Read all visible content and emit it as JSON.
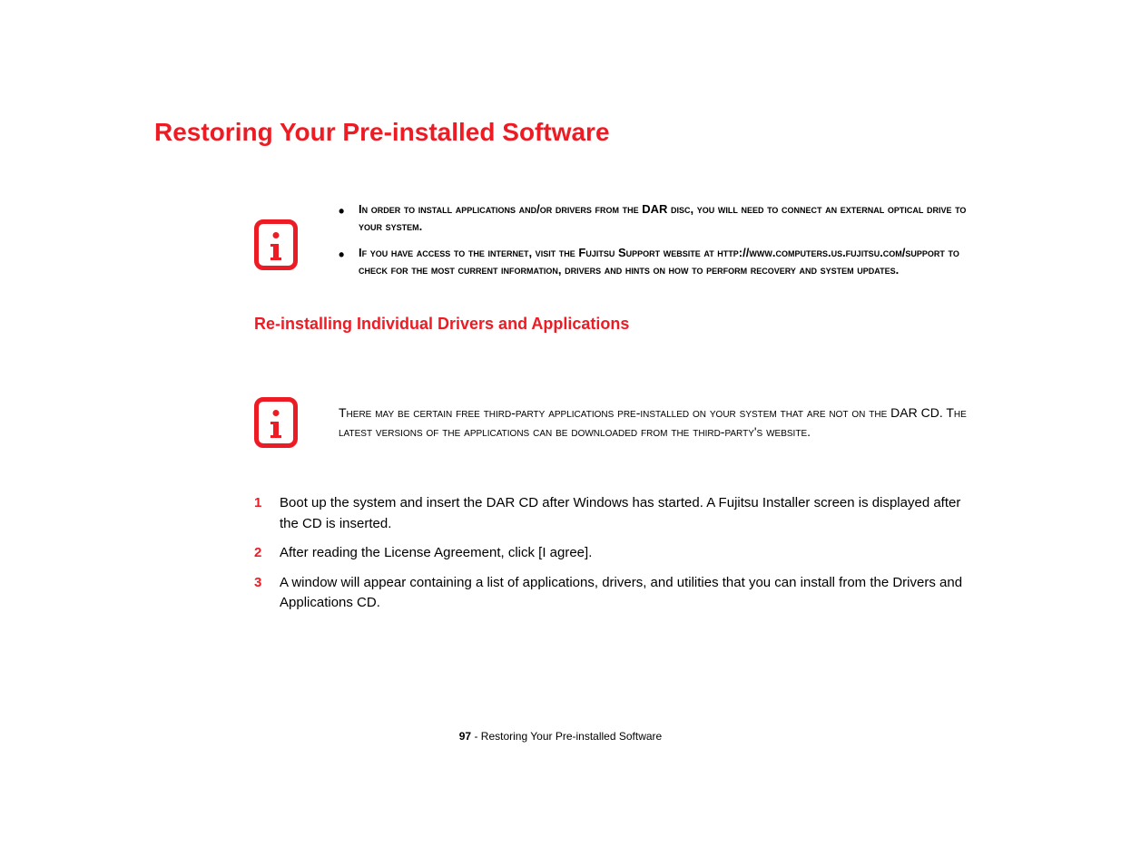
{
  "colors": {
    "accent_red": "#ed1c24",
    "text_black": "#000000",
    "background": "#ffffff"
  },
  "typography": {
    "main_title_fontsize": 28,
    "sub_title_fontsize": 18,
    "body_fontsize": 15,
    "smallcaps_fontsize": 13,
    "footer_fontsize": 12
  },
  "main_title": "Restoring Your Pre-installed Software",
  "info_box_1": {
    "bullets": [
      "In order to install applications and/or drivers from the DAR disc, you will need to connect an external optical drive to your system.",
      "If you have access to the internet, visit the Fujitsu Support website at http://www.computers.us.fujitsu.com/support to check for the most current information, drivers and hints on how to perform recovery and system updates."
    ]
  },
  "sub_title": "Re-installing Individual Drivers and Applications",
  "info_box_2": {
    "text": "There may be certain free third-party applications pre-installed on your system that are not on the DAR CD. The latest versions of the applications can be downloaded from the third-party's website."
  },
  "steps": [
    "Boot up the system and insert the DAR CD after Windows has started. A Fujitsu Installer screen is displayed after the CD is inserted.",
    "After reading the License Agreement, click [I agree].",
    "A window will appear containing a list of applications, drivers, and utilities that you can install from the Drivers and Applications CD."
  ],
  "footer": {
    "page_number": "97",
    "separator": " - ",
    "title": "Restoring Your Pre-installed Software"
  }
}
